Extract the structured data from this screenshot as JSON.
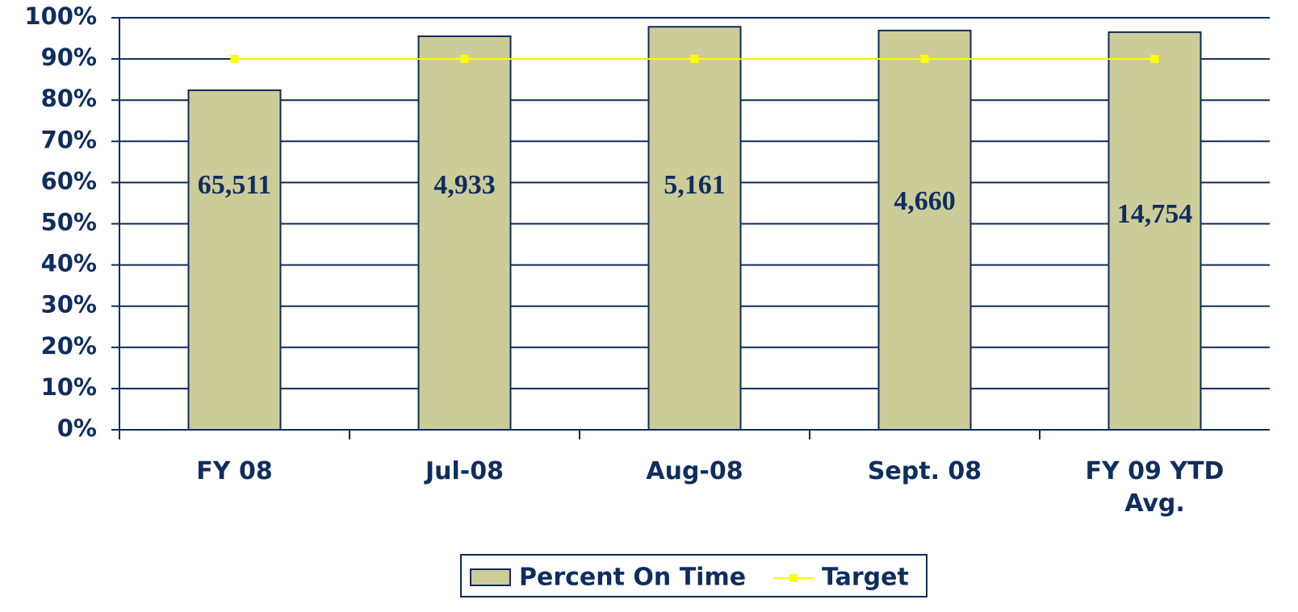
{
  "chart_data": {
    "type": "bar",
    "categories": [
      "FY 08",
      "Jul-08",
      "Aug-08",
      "Sept. 08",
      "FY 09 YTD Avg."
    ],
    "series": [
      {
        "name": "Percent On Time",
        "type": "bar",
        "color": "#cccc99",
        "values": [
          82.4,
          95.5,
          97.8,
          96.9,
          96.5
        ]
      },
      {
        "name": "Target",
        "type": "line",
        "color": "#ffff00",
        "values": [
          90,
          90,
          90,
          90,
          90
        ]
      }
    ],
    "annotations": [
      "65,511",
      "4,933",
      "5,161",
      "4,660",
      "14,754"
    ],
    "ylim": [
      0,
      100
    ],
    "yticks": [
      {
        "value": 0,
        "label": "0%"
      },
      {
        "value": 10,
        "label": "10%"
      },
      {
        "value": 20,
        "label": "20%"
      },
      {
        "value": 30,
        "label": "30%"
      },
      {
        "value": 40,
        "label": "40%"
      },
      {
        "value": 50,
        "label": "50%"
      },
      {
        "value": 60,
        "label": "60%"
      },
      {
        "value": 70,
        "label": "70%"
      },
      {
        "value": 80,
        "label": "80%"
      },
      {
        "value": 90,
        "label": "90%"
      },
      {
        "value": 100,
        "label": "100%"
      }
    ],
    "grid": true,
    "legend": "bottom"
  }
}
